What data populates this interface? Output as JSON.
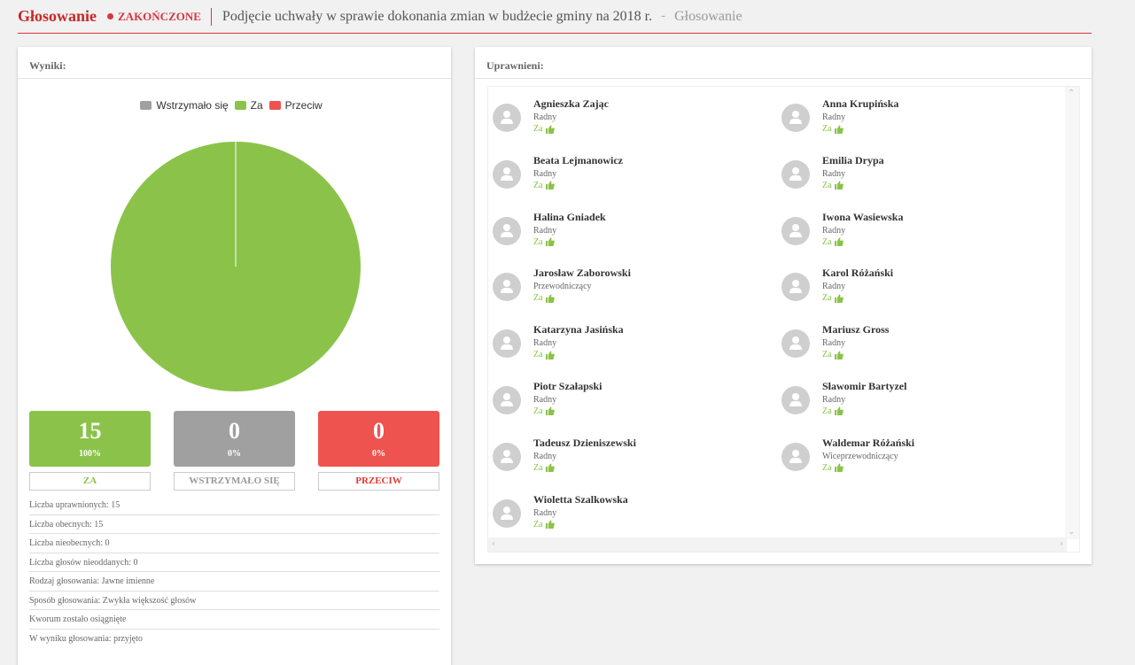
{
  "header": {
    "app_title": "Głosowanie",
    "status": "ZAKOŃCZONE",
    "title": "Podjęcie uchwały w sprawie dokonania zmian w budżecie gminy na 2018 r.",
    "separator": "-",
    "subtitle": "Głosowanie"
  },
  "results_panel": {
    "title": "Wyniki:",
    "legend": [
      {
        "label": "Wstrzymało się",
        "color": "#a0a0a0"
      },
      {
        "label": "Za",
        "color": "#8bc34a"
      },
      {
        "label": "Przeciw",
        "color": "#ef5350"
      }
    ],
    "chart_data": {
      "type": "pie",
      "categories": [
        "Wstrzymało się",
        "Za",
        "Przeciw"
      ],
      "values": [
        0,
        15,
        0
      ],
      "colors": [
        "#a0a0a0",
        "#8bc34a",
        "#ef5350"
      ],
      "legend_position": "top"
    },
    "tiles": [
      {
        "count": "15",
        "percent": "100%",
        "label": "ZA",
        "color": "#8bc34a",
        "label_color": "#8bc34a"
      },
      {
        "count": "0",
        "percent": "0%",
        "label": "WSTRZYMAŁO SIĘ",
        "color": "#a0a0a0",
        "label_color": "#999999"
      },
      {
        "count": "0",
        "percent": "0%",
        "label": "PRZECIW",
        "color": "#ef5350",
        "label_color": "#e53935"
      }
    ],
    "stats": [
      "Liczba uprawnionych: 15",
      "Liczba obecnych: 15",
      "Liczba nieobecnych: 0",
      "Liczba głosów nieoddanych: 0",
      "Rodzaj głosowania: Jawne imienne",
      "Sposób głosowania: Zwykła większość głosów",
      "Kworum zostało osiągnięte",
      "W wyniku głosowania: przyjęto"
    ]
  },
  "voters_panel": {
    "title": "Uprawnieni:",
    "voters": [
      {
        "name": "Agnieszka Zając",
        "role": "Radny",
        "vote": "Za"
      },
      {
        "name": "Anna Krupińska",
        "role": "Radny",
        "vote": "Za"
      },
      {
        "name": "Beata Lejmanowicz",
        "role": "Radny",
        "vote": "Za"
      },
      {
        "name": "Emilia Drypa",
        "role": "Radny",
        "vote": "Za"
      },
      {
        "name": "Halina Gniadek",
        "role": "Radny",
        "vote": "Za"
      },
      {
        "name": "Iwona Wasiewska",
        "role": "Radny",
        "vote": "Za"
      },
      {
        "name": "Jarosław Zaborowski",
        "role": "Przewodniczący",
        "vote": "Za"
      },
      {
        "name": "Karol Różański",
        "role": "Radny",
        "vote": "Za"
      },
      {
        "name": "Katarzyna Jasińska",
        "role": "Radny",
        "vote": "Za"
      },
      {
        "name": "Mariusz Gross",
        "role": "Radny",
        "vote": "Za"
      },
      {
        "name": "Piotr Szałapski",
        "role": "Radny",
        "vote": "Za"
      },
      {
        "name": "Sławomir Bartyzel",
        "role": "Radny",
        "vote": "Za"
      },
      {
        "name": "Tadeusz Dzieniszewski",
        "role": "Radny",
        "vote": "Za"
      },
      {
        "name": "Waldemar Różański",
        "role": "Wiceprzewodniczący",
        "vote": "Za"
      },
      {
        "name": "Wioletta Szalkowska",
        "role": "Radny",
        "vote": "Za"
      }
    ]
  },
  "icons": {
    "avatar": "user-avatar-icon",
    "vote": "thumbs-up-icon",
    "status": "dot-icon"
  }
}
